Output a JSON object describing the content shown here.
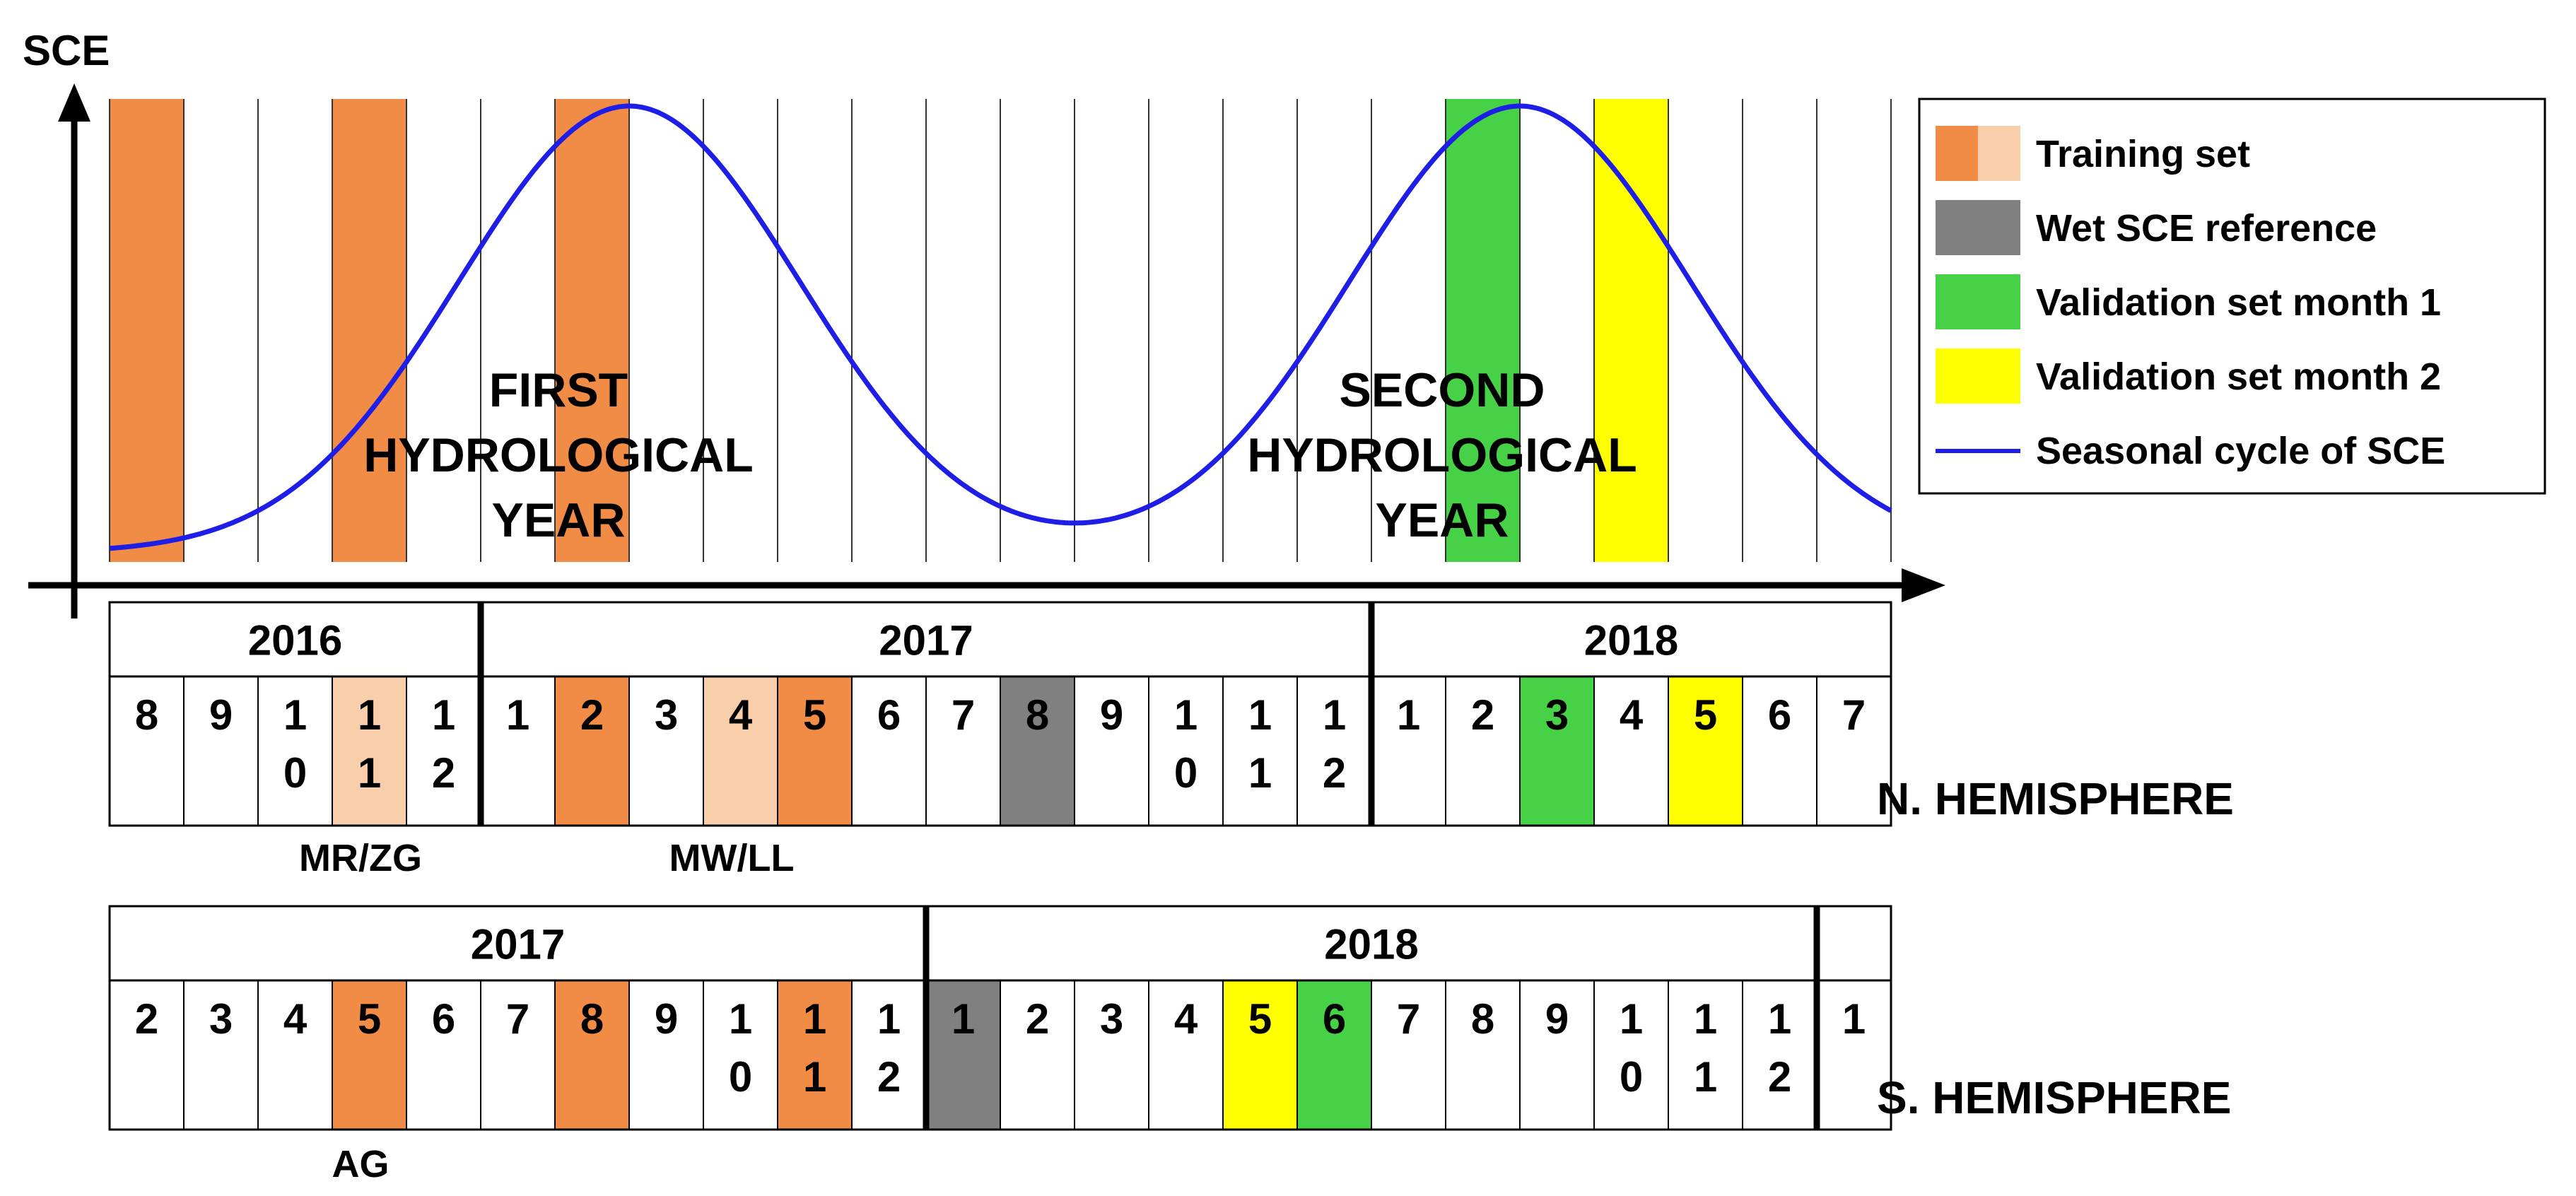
{
  "colors": {
    "training_dark": "#F08C46",
    "training_light": "#F9CFAB",
    "wet_reference": "#808080",
    "validation_month1": "#47D147",
    "validation_month2": "#FFFF00",
    "seasonal_curve": "#1E1EE6",
    "line": "#000000",
    "grid": "#333333"
  },
  "axis": {
    "y_label": "SCE"
  },
  "year_labels": {
    "first": [
      "FIRST",
      "HYDROLOGICAL",
      "YEAR"
    ],
    "second": [
      "SECOND",
      "HYDROLOGICAL",
      "YEAR"
    ]
  },
  "legend": [
    {
      "label": "Training set",
      "swatch": "split"
    },
    {
      "label": "Wet SCE reference",
      "swatch": "wet_reference"
    },
    {
      "label": "Validation set month 1",
      "swatch": "validation_month1"
    },
    {
      "label": "Validation set month 2",
      "swatch": "validation_month2"
    },
    {
      "label": "Seasonal cycle of SCE",
      "swatch": "line"
    }
  ],
  "top_bands": [
    "training_dark",
    null,
    null,
    "training_dark",
    null,
    null,
    "training_dark",
    null,
    null,
    null,
    null,
    null,
    null,
    null,
    null,
    null,
    null,
    null,
    "validation_month1",
    null,
    "validation_month2",
    null,
    null,
    null
  ],
  "north": {
    "label": "N. HEMISPHERE",
    "annotations": [
      "MR/ZG",
      "MW/LL"
    ],
    "years": [
      {
        "label": "2016",
        "span": 5
      },
      {
        "label": "2017",
        "span": 12
      },
      {
        "label": "2018",
        "span": 7
      }
    ],
    "months": [
      {
        "lines": [
          "8"
        ],
        "fill": null
      },
      {
        "lines": [
          "9"
        ],
        "fill": null
      },
      {
        "lines": [
          "1",
          "0"
        ],
        "fill": null
      },
      {
        "lines": [
          "1",
          "1"
        ],
        "fill": "training_light"
      },
      {
        "lines": [
          "1",
          "2"
        ],
        "fill": null
      },
      {
        "lines": [
          "1"
        ],
        "fill": null
      },
      {
        "lines": [
          "2"
        ],
        "fill": "training_dark"
      },
      {
        "lines": [
          "3"
        ],
        "fill": null
      },
      {
        "lines": [
          "4"
        ],
        "fill": "training_light"
      },
      {
        "lines": [
          "5"
        ],
        "fill": "training_dark"
      },
      {
        "lines": [
          "6"
        ],
        "fill": null
      },
      {
        "lines": [
          "7"
        ],
        "fill": null
      },
      {
        "lines": [
          "8"
        ],
        "fill": "wet_reference"
      },
      {
        "lines": [
          "9"
        ],
        "fill": null
      },
      {
        "lines": [
          "1",
          "0"
        ],
        "fill": null
      },
      {
        "lines": [
          "1",
          "1"
        ],
        "fill": null
      },
      {
        "lines": [
          "1",
          "2"
        ],
        "fill": null
      },
      {
        "lines": [
          "1"
        ],
        "fill": null
      },
      {
        "lines": [
          "2"
        ],
        "fill": null
      },
      {
        "lines": [
          "3"
        ],
        "fill": "validation_month1"
      },
      {
        "lines": [
          "4"
        ],
        "fill": null
      },
      {
        "lines": [
          "5"
        ],
        "fill": "validation_month2"
      },
      {
        "lines": [
          "6"
        ],
        "fill": null
      },
      {
        "lines": [
          "7"
        ],
        "fill": null
      }
    ]
  },
  "south": {
    "label": "S. HEMISPHERE",
    "annotations": [
      "AG"
    ],
    "years": [
      {
        "label": "2017",
        "span": 11
      },
      {
        "label": "2018",
        "span": 12
      },
      {
        "label": "",
        "span": 1
      }
    ],
    "months": [
      {
        "lines": [
          "2"
        ],
        "fill": null
      },
      {
        "lines": [
          "3"
        ],
        "fill": null
      },
      {
        "lines": [
          "4"
        ],
        "fill": null
      },
      {
        "lines": [
          "5"
        ],
        "fill": "training_dark"
      },
      {
        "lines": [
          "6"
        ],
        "fill": null
      },
      {
        "lines": [
          "7"
        ],
        "fill": null
      },
      {
        "lines": [
          "8"
        ],
        "fill": "training_dark"
      },
      {
        "lines": [
          "9"
        ],
        "fill": null
      },
      {
        "lines": [
          "1",
          "0"
        ],
        "fill": null
      },
      {
        "lines": [
          "1",
          "1"
        ],
        "fill": "training_dark"
      },
      {
        "lines": [
          "1",
          "2"
        ],
        "fill": null
      },
      {
        "lines": [
          "1"
        ],
        "fill": "wet_reference"
      },
      {
        "lines": [
          "2"
        ],
        "fill": null
      },
      {
        "lines": [
          "3"
        ],
        "fill": null
      },
      {
        "lines": [
          "4"
        ],
        "fill": null
      },
      {
        "lines": [
          "5"
        ],
        "fill": "validation_month2"
      },
      {
        "lines": [
          "6"
        ],
        "fill": "validation_month1"
      },
      {
        "lines": [
          "7"
        ],
        "fill": null
      },
      {
        "lines": [
          "8"
        ],
        "fill": null
      },
      {
        "lines": [
          "9"
        ],
        "fill": null
      },
      {
        "lines": [
          "1",
          "0"
        ],
        "fill": null
      },
      {
        "lines": [
          "1",
          "1"
        ],
        "fill": null
      },
      {
        "lines": [
          "1",
          "2"
        ],
        "fill": null
      },
      {
        "lines": [
          "1"
        ],
        "fill": null
      }
    ]
  }
}
